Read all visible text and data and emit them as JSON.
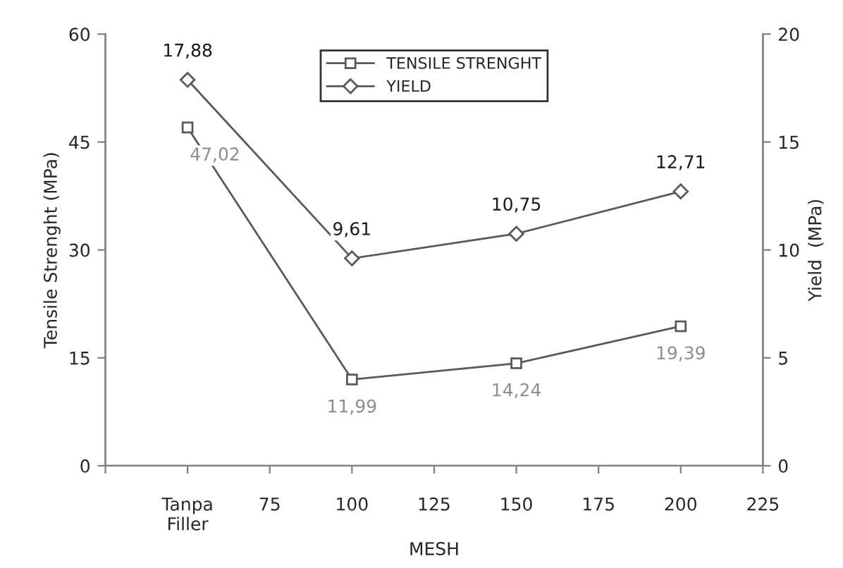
{
  "chart_data": {
    "type": "line",
    "xlabel": "MESH",
    "ylabel": "Tensile Strenght (MPa)",
    "y2label": "Yield  (MPa)",
    "x": [
      50,
      100,
      150,
      200
    ],
    "series": [
      {
        "name": "TENSILE STRENGHT",
        "color": "#595959",
        "values": [
          47.02,
          11.99,
          14.24,
          19.39
        ],
        "marker": "square",
        "value_labels": [
          "47,02",
          "11,99",
          "14,24",
          "19,39"
        ]
      },
      {
        "name": "YIELD",
        "color": "#595959",
        "values": [
          17.88,
          9.61,
          10.75,
          12.71
        ],
        "marker": "diamond",
        "axis": "y2",
        "value_labels": [
          "17,88",
          "9,61",
          "10,75",
          "12,71"
        ]
      }
    ],
    "xlim": [
      25,
      225
    ],
    "xticks": [
      {
        "value": 25,
        "label": null
      },
      {
        "value": 50,
        "label": "Tanpa\nFiller"
      },
      75,
      100,
      125,
      150,
      175,
      200,
      225
    ],
    "ylim": [
      0,
      60
    ],
    "yticks": [
      0,
      15,
      30,
      45,
      60
    ],
    "y2lim": [
      0,
      20
    ],
    "y2ticks": [
      0,
      5,
      10,
      15,
      20
    ],
    "grid": false,
    "legend": "top",
    "line_style": "solid"
  }
}
